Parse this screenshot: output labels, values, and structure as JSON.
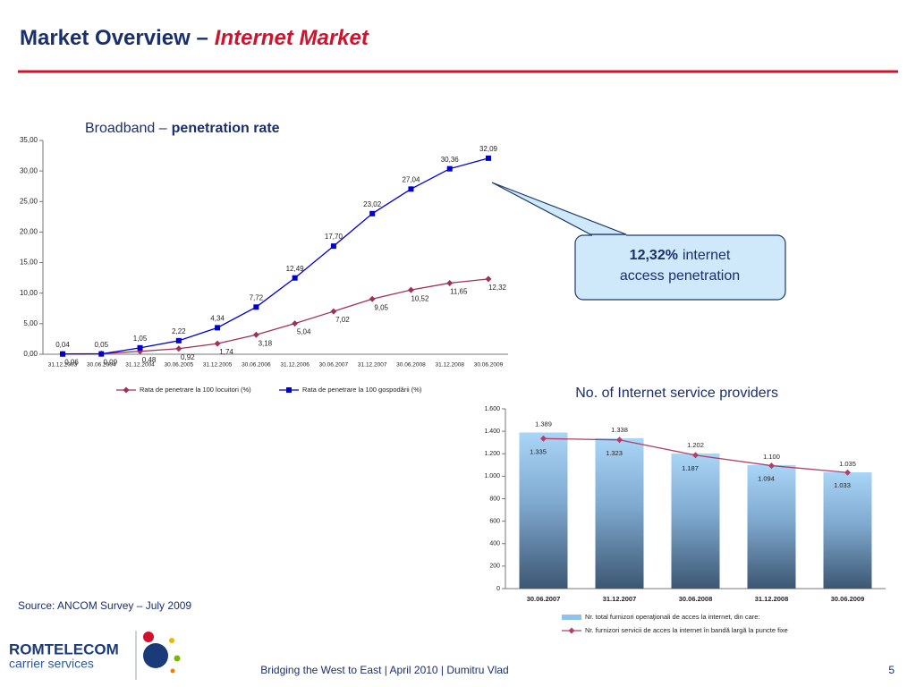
{
  "header": {
    "title": [
      "Market Overview –",
      "Internet Market"
    ]
  },
  "chart_data": [
    {
      "type": "line",
      "title": [
        "Broadband –",
        "penetration rate"
      ],
      "categories": [
        "31.12.2003",
        "30.06.2004",
        "31.12.2004",
        "30.06.2005",
        "31.12.2005",
        "30.06.2006",
        "31.12.2006",
        "30.06.2007",
        "31.12.2007",
        "30.06.2008",
        "31.12.2008",
        "30.06.2009"
      ],
      "series": [
        {
          "name": "Rata de penetrare la 100 locuitori (%)",
          "color": "#a0305a",
          "marker": "diamond",
          "values": [
            0.06,
            0.09,
            0.48,
            0.92,
            1.74,
            3.18,
            5.04,
            7.02,
            9.05,
            10.52,
            11.65,
            12.32
          ],
          "value_labels": [
            "0,06",
            "0,09",
            "0,48",
            "0,92",
            "1,74",
            "3,18",
            "5,04",
            "7,02",
            "9,05",
            "10,52",
            "11,65",
            "12,32"
          ]
        },
        {
          "name": "Rata de penetrare la 100 gospodării (%)",
          "color": "#0000cc",
          "marker": "square",
          "values": [
            0.04,
            0.05,
            1.05,
            2.22,
            4.34,
            7.72,
            12.49,
            17.7,
            23.02,
            27.04,
            30.36,
            32.09
          ],
          "value_labels": [
            "0,04",
            "0,05",
            "1,05",
            "2,22",
            "4,34",
            "7,72",
            "12,49",
            "17,70",
            "23,02",
            "27,04",
            "30,36",
            "32,09"
          ]
        }
      ],
      "ylim": [
        0,
        35
      ],
      "yticks": [
        {
          "value": 0,
          "label": "0,00"
        },
        {
          "value": 5,
          "label": "5,00"
        },
        {
          "value": 10,
          "label": "10,00"
        },
        {
          "value": 15,
          "label": "15,00"
        },
        {
          "value": 20,
          "label": "20,00"
        },
        {
          "value": 25,
          "label": "25,00"
        },
        {
          "value": 30,
          "label": "30,00"
        },
        {
          "value": 35,
          "label": "35,00"
        }
      ],
      "legend": "bottom"
    },
    {
      "type": "combo",
      "title": "No. of Internet service providers",
      "categories": [
        "30.06.2007",
        "31.12.2007",
        "30.06.2008",
        "31.12.2008",
        "30.06.2009"
      ],
      "series": [
        {
          "name": "Nr. total furnizori operaţionali de acces la internet, din care:",
          "type": "bar",
          "color": "#8fc3ee",
          "values": [
            1389,
            1338,
            1202,
            1100,
            1035
          ],
          "value_labels": [
            "1.389",
            "1.338",
            "1.202",
            "1.100",
            "1.035"
          ]
        },
        {
          "name": "Nr. furnizori servicii de acces la internet în bandă largă la puncte fixe",
          "type": "line",
          "color": "#b0406a",
          "values": [
            1335,
            1323,
            1187,
            1094,
            1033
          ],
          "value_labels": [
            "1.335",
            "1.323",
            "1.187",
            "1.094",
            "1.033"
          ]
        }
      ],
      "ylim": [
        0,
        1600
      ],
      "yticks": [
        0,
        {
          "value": 200,
          "label": "200"
        },
        400,
        600,
        800,
        {
          "value": 1000,
          "label": "1.000"
        },
        {
          "value": 1200,
          "label": "1.200"
        },
        {
          "value": 1400,
          "label": "1.400"
        },
        {
          "value": 1600,
          "label": "1.600"
        }
      ],
      "legend": "bottom"
    }
  ],
  "callout": {
    "value": "12,32%",
    "text": "internet",
    "text2": "access penetration"
  },
  "source": "Source: ANCOM Survey – July 2009",
  "logo": {
    "name": "ROMTELECOM",
    "tagline": "carrier services"
  },
  "footer": {
    "text": "Bridging the West to East | April 2010 | Dumitru Vlad",
    "page": "5"
  }
}
